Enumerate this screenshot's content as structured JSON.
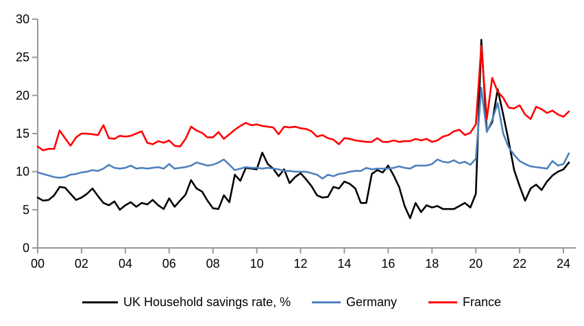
{
  "chart_data": {
    "type": "line",
    "title": "",
    "xlabel": "",
    "ylabel": "",
    "x_unit": "quarterly, 2000Q1 - 2024Q2",
    "x_tick_labels": [
      "00",
      "02",
      "04",
      "06",
      "08",
      "10",
      "12",
      "14",
      "16",
      "18",
      "20",
      "22",
      "24"
    ],
    "y_ticks": [
      0,
      5,
      10,
      15,
      20,
      25,
      30
    ],
    "ylim": [
      0,
      30
    ],
    "grid": false,
    "legend_position": "bottom",
    "axis_color": "#999999",
    "tick_label_color": "#000000",
    "series": [
      {
        "name": "UK Household savings rate, %",
        "color": "#000000",
        "values": [
          6.6,
          6.2,
          6.3,
          6.9,
          8.0,
          7.9,
          7.1,
          6.3,
          6.6,
          7.1,
          7.8,
          6.8,
          5.9,
          5.6,
          6.1,
          5.0,
          5.6,
          6.0,
          5.4,
          5.9,
          5.7,
          6.3,
          5.6,
          5.1,
          6.5,
          5.4,
          6.2,
          7.0,
          8.9,
          7.8,
          7.4,
          6.2,
          5.2,
          5.1,
          6.9,
          6.0,
          9.6,
          8.8,
          10.5,
          10.4,
          10.3,
          12.5,
          11.0,
          10.4,
          9.4,
          10.3,
          8.5,
          9.3,
          9.8,
          9.0,
          8.1,
          6.9,
          6.6,
          6.7,
          8.0,
          7.8,
          8.7,
          8.4,
          7.8,
          5.9,
          5.9,
          9.7,
          10.2,
          9.9,
          10.8,
          9.5,
          8.0,
          5.5,
          3.9,
          5.9,
          4.7,
          5.6,
          5.3,
          5.5,
          5.1,
          5.1,
          5.1,
          5.5,
          5.9,
          5.3,
          7.1,
          27.3,
          15.3,
          16.5,
          20.8,
          17.5,
          14.0,
          10.2,
          8.1,
          6.2,
          7.8,
          8.3,
          7.6,
          8.7,
          9.5,
          10.0,
          10.3,
          11.2
        ]
      },
      {
        "name": "Germany",
        "color": "#4f81bd",
        "values": [
          9.9,
          9.7,
          9.5,
          9.3,
          9.2,
          9.3,
          9.6,
          9.7,
          9.9,
          10.0,
          10.2,
          10.1,
          10.4,
          10.9,
          10.5,
          10.4,
          10.5,
          10.8,
          10.4,
          10.5,
          10.4,
          10.5,
          10.6,
          10.4,
          11.0,
          10.4,
          10.5,
          10.6,
          10.8,
          11.2,
          11.0,
          10.8,
          10.9,
          11.2,
          11.6,
          10.9,
          10.2,
          10.4,
          10.6,
          10.5,
          10.5,
          10.4,
          10.5,
          10.4,
          10.3,
          10.1,
          10.1,
          10.0,
          10.0,
          10.0,
          9.8,
          9.6,
          9.1,
          9.6,
          9.4,
          9.7,
          9.8,
          10.0,
          10.1,
          10.1,
          10.5,
          10.3,
          10.4,
          10.4,
          10.4,
          10.5,
          10.7,
          10.5,
          10.4,
          10.8,
          10.8,
          10.8,
          11.0,
          11.6,
          11.3,
          11.2,
          11.5,
          11.1,
          11.3,
          10.9,
          11.7,
          21.0,
          15.2,
          16.8,
          19.0,
          15.0,
          13.2,
          12.2,
          11.4,
          11.0,
          10.7,
          10.6,
          10.5,
          10.4,
          11.4,
          10.8,
          11.0,
          12.4
        ]
      },
      {
        "name": "France",
        "color": "#ff0000",
        "values": [
          13.3,
          12.8,
          13.0,
          13.0,
          15.4,
          14.4,
          13.4,
          14.5,
          15.0,
          15.0,
          14.9,
          14.8,
          16.1,
          14.4,
          14.3,
          14.7,
          14.6,
          14.7,
          15.0,
          15.3,
          13.8,
          13.6,
          14.0,
          13.8,
          14.1,
          13.4,
          13.3,
          14.3,
          15.9,
          15.4,
          15.1,
          14.5,
          14.5,
          15.2,
          14.3,
          14.9,
          15.5,
          16.0,
          16.4,
          16.1,
          16.2,
          16.0,
          15.9,
          15.8,
          14.9,
          15.9,
          15.8,
          15.9,
          15.7,
          15.6,
          15.3,
          14.6,
          14.8,
          14.4,
          14.2,
          13.6,
          14.4,
          14.3,
          14.1,
          14.0,
          13.9,
          13.9,
          14.4,
          13.9,
          13.9,
          14.1,
          13.9,
          14.0,
          14.0,
          14.3,
          14.1,
          14.3,
          13.9,
          14.1,
          14.6,
          14.8,
          15.3,
          15.5,
          14.8,
          15.1,
          16.2,
          26.5,
          16.9,
          22.3,
          20.5,
          19.7,
          18.4,
          18.3,
          18.7,
          17.5,
          16.9,
          18.5,
          18.2,
          17.7,
          18.0,
          17.5,
          17.2,
          17.9
        ]
      }
    ]
  }
}
